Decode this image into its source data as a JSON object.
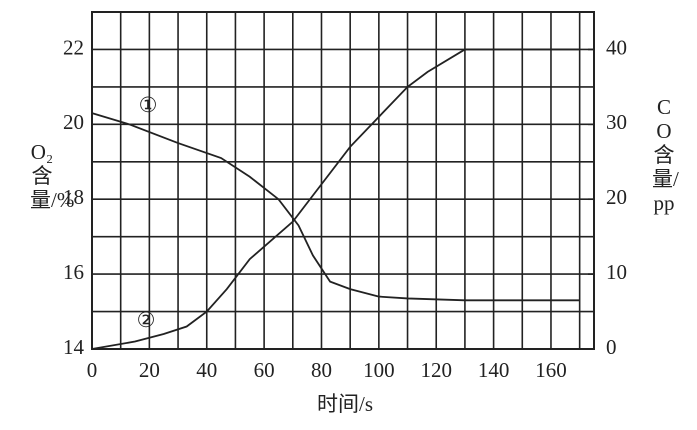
{
  "chart_data": {
    "type": "line",
    "xlabel": "时间/s",
    "ylabel": "O₂含量/%",
    "y2label": "CO含量/pp",
    "xlim": [
      0,
      175
    ],
    "xticks": [
      0,
      20,
      40,
      60,
      80,
      100,
      120,
      140,
      160
    ],
    "ylim": [
      14,
      23
    ],
    "yticks": [
      14,
      16,
      18,
      20,
      22
    ],
    "y2lim": [
      0,
      45
    ],
    "y2ticks": [
      0,
      10,
      20,
      30,
      40
    ],
    "grid": true,
    "annotations": [
      "①",
      "②"
    ],
    "series": [
      {
        "color": "#222222",
        "x": [
          0,
          13,
          30,
          45,
          55,
          65,
          72,
          77,
          83,
          90,
          100,
          110,
          130,
          170
        ],
        "values": [
          20.3,
          20.0,
          19.5,
          19.1,
          18.6,
          18.0,
          17.3,
          16.5,
          15.8,
          15.6,
          15.4,
          15.35,
          15.3,
          15.3
        ]
      },
      {
        "color": "#222222",
        "axis": "y2",
        "x": [
          0,
          15,
          25,
          33,
          40,
          47,
          55,
          70,
          80,
          90,
          100,
          110,
          117,
          130,
          170
        ],
        "values": [
          0,
          1,
          2,
          3,
          5,
          8,
          12,
          17,
          22,
          27,
          31,
          35,
          37,
          40,
          40
        ]
      }
    ]
  }
}
